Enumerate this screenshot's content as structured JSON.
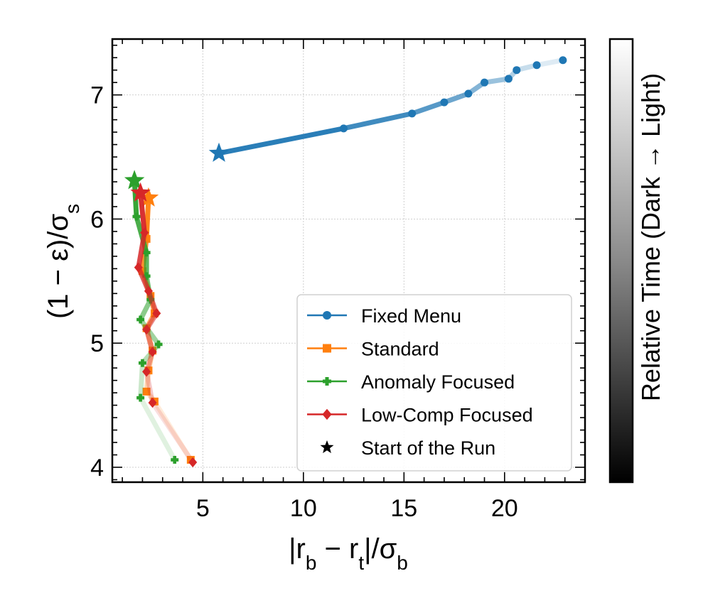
{
  "chart_data": {
    "type": "line",
    "xlabel_parts": [
      "|r",
      "b",
      " − r",
      "t",
      "|/σ",
      "b"
    ],
    "ylabel_parts": [
      "(1 − ε)/σ",
      "s"
    ],
    "colorbar_label": "Relative Time (Dark → Light)",
    "xlim": [
      0.5,
      24.0
    ],
    "ylim": [
      3.88,
      7.45
    ],
    "xticks": [
      5,
      10,
      15,
      20
    ],
    "xtick_labels": [
      "5",
      "10",
      "15",
      "20"
    ],
    "yticks": [
      4,
      5,
      6,
      7
    ],
    "ytick_labels": [
      "4",
      "5",
      "6",
      "7"
    ],
    "grid": true,
    "legend_position": "lower-right",
    "series": [
      {
        "name": "Fixed Menu",
        "color": "#1f77b4",
        "marker": "circle",
        "x": [
          5.8,
          12.0,
          15.4,
          17.0,
          18.2,
          19.0,
          20.2,
          20.6,
          21.6,
          22.9
        ],
        "y": [
          6.53,
          6.73,
          6.85,
          6.94,
          7.01,
          7.1,
          7.13,
          7.2,
          7.24,
          7.28
        ]
      },
      {
        "name": "Standard",
        "color": "#ff7f0e",
        "marker": "square",
        "x": [
          2.3,
          2.2,
          2.0,
          2.4,
          2.6,
          2.2,
          2.5,
          2.3,
          2.2,
          2.6,
          4.4
        ],
        "y": [
          6.17,
          5.84,
          5.58,
          5.38,
          5.24,
          5.12,
          4.94,
          4.78,
          4.61,
          4.53,
          4.06
        ]
      },
      {
        "name": "Anomaly Focused",
        "color": "#2ca02c",
        "marker": "plus",
        "x": [
          1.6,
          1.7,
          2.2,
          2.2,
          2.4,
          1.9,
          2.8,
          2.0,
          1.9,
          3.6
        ],
        "y": [
          6.31,
          6.02,
          5.73,
          5.54,
          5.35,
          5.19,
          4.99,
          4.84,
          4.56,
          4.06
        ]
      },
      {
        "name": "Low-Comp Focused",
        "color": "#d62728",
        "marker": "diamond",
        "x": [
          1.9,
          2.1,
          1.8,
          2.3,
          2.7,
          2.2,
          2.5,
          2.2,
          2.5,
          4.5
        ],
        "y": [
          6.21,
          5.89,
          5.61,
          5.42,
          5.24,
          5.11,
          4.93,
          4.77,
          4.52,
          4.04
        ]
      }
    ],
    "legend": [
      {
        "label": "Fixed Menu",
        "color": "#1f77b4",
        "marker": "circle"
      },
      {
        "label": "Standard",
        "color": "#ff7f0e",
        "marker": "square"
      },
      {
        "label": "Anomaly Focused",
        "color": "#2ca02c",
        "marker": "plus"
      },
      {
        "label": "Low-Comp Focused",
        "color": "#d62728",
        "marker": "diamond"
      },
      {
        "label": "Start of the Run",
        "color": "#000000",
        "marker": "star"
      }
    ]
  }
}
